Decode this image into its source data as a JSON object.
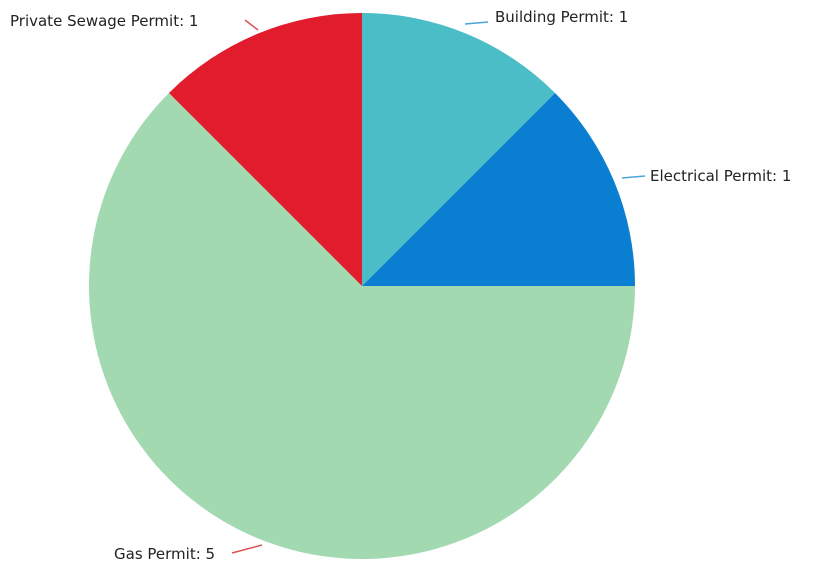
{
  "chart_data": {
    "type": "pie",
    "title": "",
    "slices": [
      {
        "label": "Building Permit",
        "value": 1,
        "display": "Building Permit: 1",
        "color": "#4bbdc7",
        "label_color": "#4aa6d8"
      },
      {
        "label": "Electrical Permit",
        "value": 1,
        "display": "Electrical Permit: 1",
        "color": "#0a7fd1",
        "label_color": "#4aa6d8"
      },
      {
        "label": "Gas Permit",
        "value": 5,
        "display": "Gas Permit: 5",
        "color": "#a3d9b1",
        "label_color": "#d9534f"
      },
      {
        "label": "Private Sewage Permit",
        "value": 1,
        "display": "Private Sewage Permit: 1",
        "color": "#e11d2d",
        "label_color": "#d9534f"
      }
    ],
    "legend": "none",
    "start_angle": "top",
    "direction": "clockwise"
  }
}
